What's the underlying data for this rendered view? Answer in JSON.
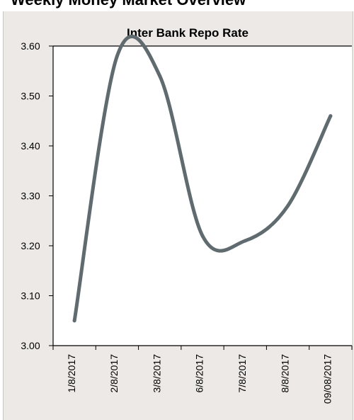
{
  "header": {
    "title": "Weekly Money Market Overview"
  },
  "chart_data": {
    "type": "line",
    "title": "Inter Bank Repo Rate",
    "xlabel": "",
    "ylabel": "",
    "categories": [
      "1/8/2017",
      "2/8/2017",
      "3/8/2017",
      "6/8/2017",
      "7/8/2017",
      "8/8/2017",
      "09/08/2017"
    ],
    "series": [
      {
        "values": [
          3.05,
          3.58,
          3.54,
          3.22,
          3.21,
          3.28,
          3.46
        ],
        "color": "#5f6b6e"
      }
    ],
    "y_ticks": [
      "3.00",
      "3.10",
      "3.20",
      "3.30",
      "3.40",
      "3.50",
      "3.60"
    ],
    "ylim": [
      3.0,
      3.6
    ],
    "grid": false,
    "smooth": true
  }
}
